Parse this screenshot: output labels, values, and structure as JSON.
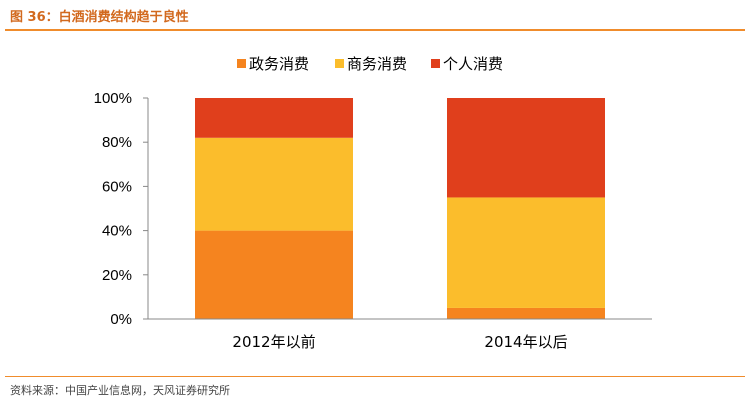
{
  "figure": {
    "title": "图 36：白酒消费结构趋于良性",
    "source": "资料来源：中国产业信息网，天风证券研究所"
  },
  "chart_data": {
    "type": "bar",
    "stacked": true,
    "percent": true,
    "categories": [
      "2012年以前",
      "2014年以后"
    ],
    "series": [
      {
        "name": "政务消费",
        "values": [
          40,
          5
        ],
        "color": "#f5841f"
      },
      {
        "name": "商务消费",
        "values": [
          42,
          50
        ],
        "color": "#fbbd2c"
      },
      {
        "name": "个人消费",
        "values": [
          18,
          45
        ],
        "color": "#e03f1c"
      }
    ],
    "ylim": [
      0,
      100
    ],
    "yticks": [
      "0%",
      "20%",
      "40%",
      "60%",
      "80%",
      "100%"
    ],
    "legend_position": "top",
    "grid": false
  }
}
